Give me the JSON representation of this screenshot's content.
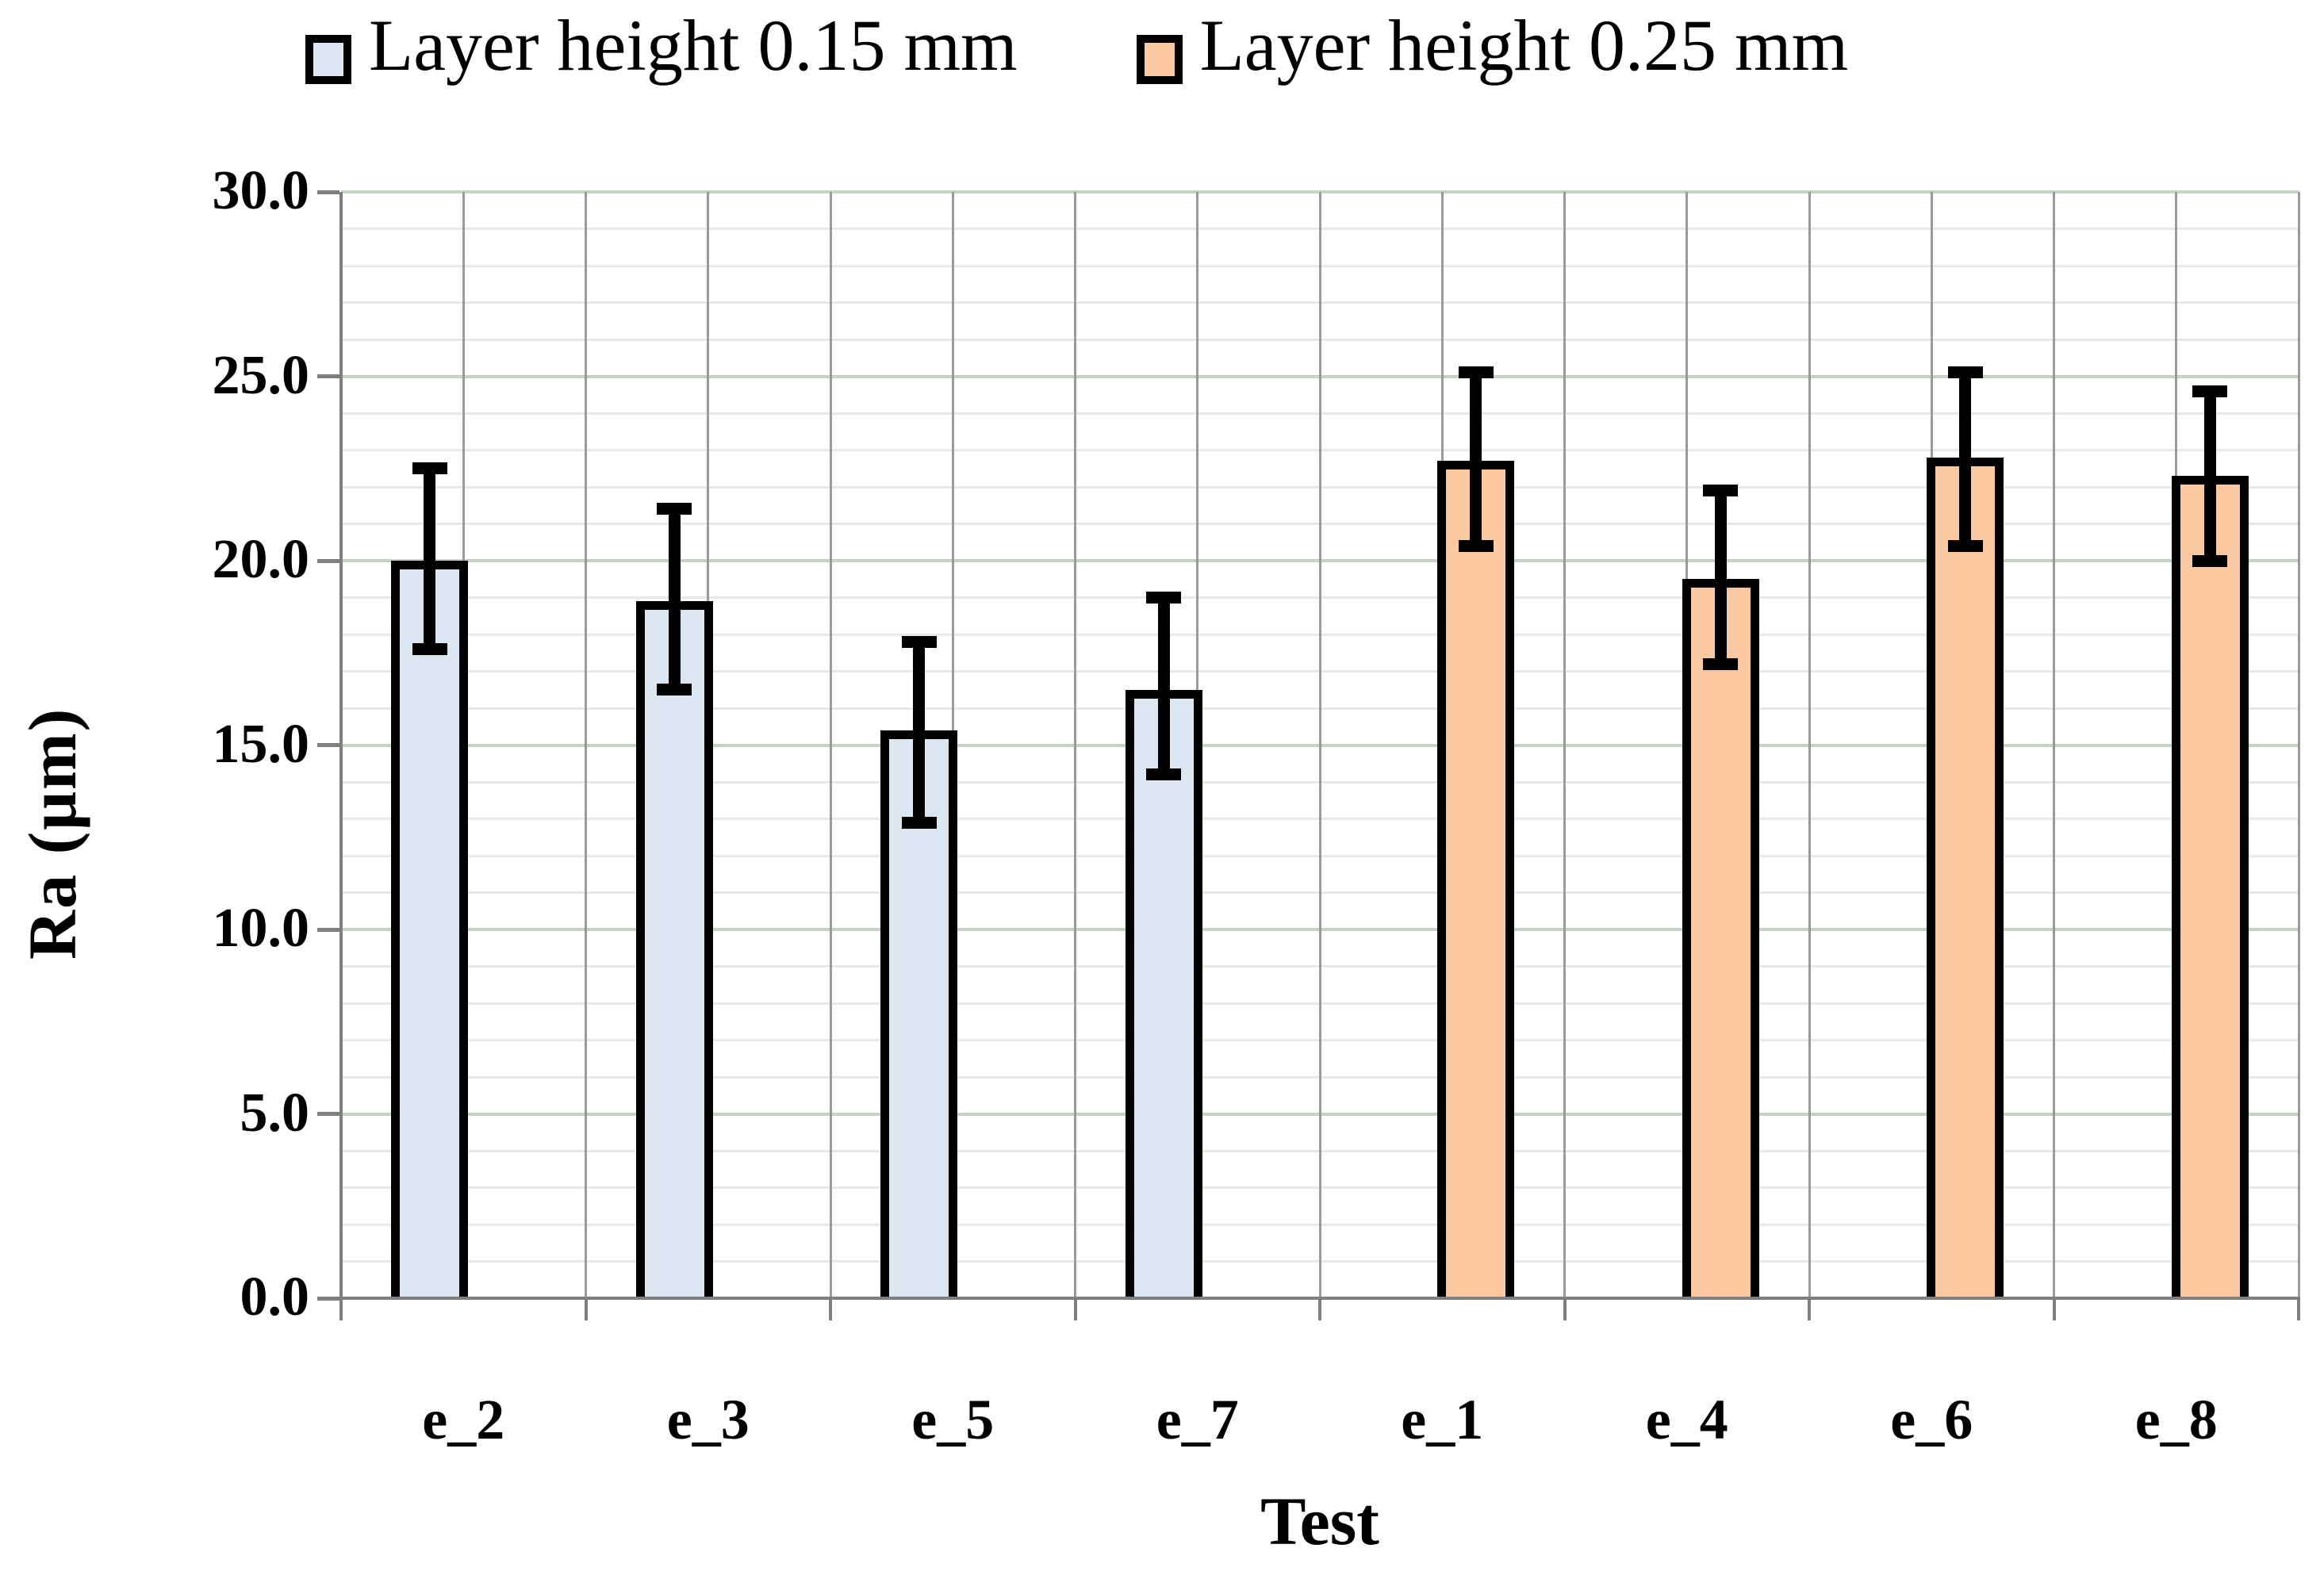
{
  "legend": {
    "items": [
      {
        "label": "Layer height 0.15 mm",
        "swatch_color": "#DCE6F1"
      },
      {
        "label": "Layer height 0.25 mm",
        "swatch_color": "#FAC9A2"
      }
    ]
  },
  "chart_data": {
    "type": "bar",
    "title": "",
    "xlabel": "Test",
    "ylabel": "Ra (μm)",
    "ylim": [
      0,
      30
    ],
    "y_tick_step": 5,
    "y_minor_step": 1,
    "y_major_tick_labels": [
      "0.0",
      "5.0",
      "10.0",
      "15.0",
      "20.0",
      "25.0",
      "30.0"
    ],
    "legend_position": "top",
    "grid": {
      "horizontal_minor": true,
      "horizontal_major": true,
      "vertical_half_category": true
    },
    "categories": [
      "e_2",
      "e_3",
      "e_5",
      "e_7",
      "e_1",
      "e_4",
      "e_6",
      "e_8"
    ],
    "series": [
      {
        "name": "Layer height 0.15 mm",
        "fill": "#DCE6F1",
        "values": [
          20.0,
          18.9,
          15.4,
          16.5,
          null,
          null,
          null,
          null
        ],
        "error_plus": [
          2.5,
          2.5,
          2.4,
          2.5,
          null,
          null,
          null,
          null
        ],
        "error_minus": [
          2.4,
          2.4,
          2.5,
          2.3,
          null,
          null,
          null,
          null
        ]
      },
      {
        "name": "Layer height 0.25 mm",
        "fill": "#FAC9A2",
        "values": [
          null,
          null,
          null,
          null,
          22.7,
          19.5,
          22.8,
          22.3
        ],
        "error_plus": [
          null,
          null,
          null,
          null,
          2.4,
          2.4,
          2.3,
          2.3
        ],
        "error_minus": [
          null,
          null,
          null,
          null,
          2.3,
          2.3,
          2.4,
          2.3
        ]
      }
    ]
  },
  "colors": {
    "background": "#FFFFFF",
    "bar_border": "#000000",
    "error_bar": "#000000",
    "axis_line": "#7F7F7F",
    "grid_major_h": "#C5D2C5",
    "grid_minor_h": "#E3EBE3",
    "grid_vertical": "#9A9A9A",
    "text": "#000000"
  }
}
